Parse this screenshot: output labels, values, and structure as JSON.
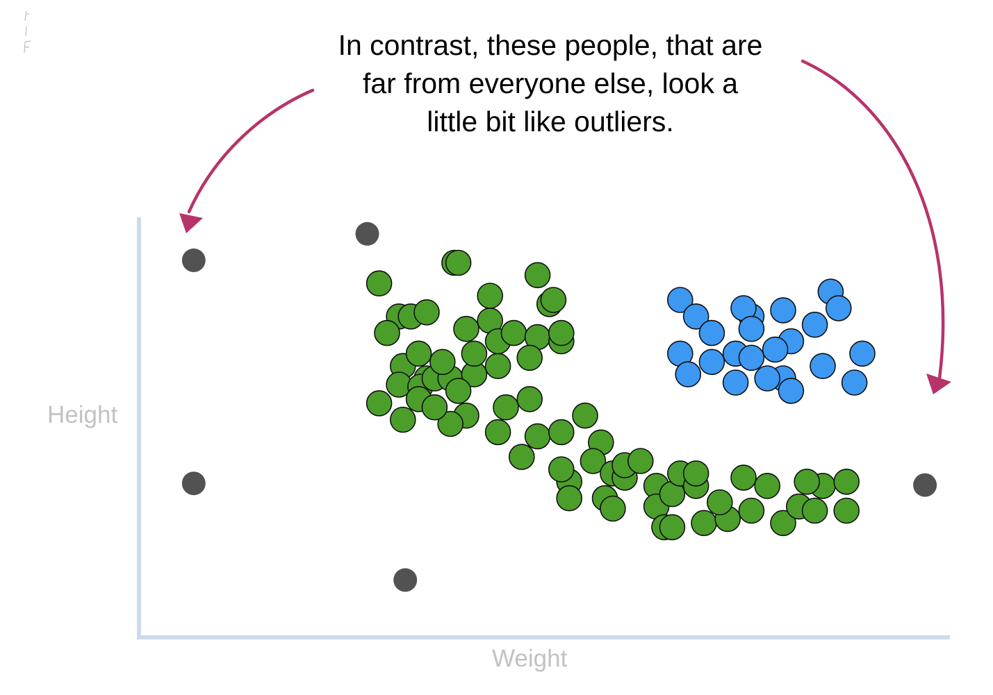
{
  "annotation": {
    "lines": [
      "In contrast, these people, that are",
      "far from everyone else, look a",
      "little bit like outliers."
    ],
    "arrow_color": "#b8336a"
  },
  "chart_data": {
    "type": "scatter",
    "title": "",
    "xlabel": "Weight",
    "ylabel": "Height",
    "xlim": [
      0,
      100
    ],
    "ylim": [
      0,
      100
    ],
    "axis_color": "#ccdaeb",
    "grid": false,
    "tick_labels": false,
    "series": [
      {
        "color": "#4c9e2b",
        "points": [
          [
            29,
            84
          ],
          [
            31.5,
            76
          ],
          [
            33,
            76
          ],
          [
            38.5,
            89
          ],
          [
            35,
            77
          ],
          [
            39,
            89
          ],
          [
            30,
            72
          ],
          [
            32,
            64
          ],
          [
            35,
            61
          ],
          [
            31.5,
            59.5
          ],
          [
            34.2,
            59
          ],
          [
            34,
            67
          ],
          [
            29,
            55
          ],
          [
            32,
            51
          ],
          [
            36,
            61
          ],
          [
            34,
            56
          ],
          [
            38,
            61
          ],
          [
            41,
            62
          ],
          [
            37,
            65
          ],
          [
            39,
            58
          ],
          [
            44,
            64
          ],
          [
            41,
            67
          ],
          [
            40,
            73
          ],
          [
            43,
            75
          ],
          [
            43,
            81
          ],
          [
            44,
            70
          ],
          [
            46,
            72
          ],
          [
            49,
            71
          ],
          [
            48,
            66
          ],
          [
            48,
            56
          ],
          [
            49,
            86
          ],
          [
            50.5,
            79
          ],
          [
            51,
            80
          ],
          [
            52,
            70
          ],
          [
            52,
            72
          ],
          [
            45,
            54
          ],
          [
            40,
            52
          ],
          [
            44,
            48
          ],
          [
            49,
            47
          ],
          [
            52,
            48
          ],
          [
            47,
            42
          ],
          [
            38,
            50
          ],
          [
            36,
            54
          ],
          [
            53,
            36
          ],
          [
            52,
            39
          ],
          [
            55,
            52
          ],
          [
            57,
            45.5
          ],
          [
            56,
            41
          ],
          [
            58.5,
            38
          ],
          [
            53,
            32
          ],
          [
            57.5,
            32
          ],
          [
            58.5,
            29.5
          ],
          [
            60,
            37
          ],
          [
            60,
            40
          ],
          [
            62,
            41
          ],
          [
            64,
            35
          ],
          [
            64,
            30
          ],
          [
            65,
            25
          ],
          [
            66,
            33
          ],
          [
            66,
            25
          ],
          [
            67,
            38
          ],
          [
            69,
            35
          ],
          [
            70,
            26
          ],
          [
            73,
            27
          ],
          [
            72,
            31
          ],
          [
            76,
            29
          ],
          [
            75,
            37
          ],
          [
            78,
            35
          ],
          [
            80,
            26
          ],
          [
            82,
            30
          ],
          [
            85,
            35
          ],
          [
            83,
            36
          ],
          [
            84,
            29
          ],
          [
            88,
            36
          ],
          [
            88,
            29
          ],
          [
            69,
            38
          ]
        ]
      },
      {
        "color": "#3d98f2",
        "points": [
          [
            67,
            80
          ],
          [
            69,
            76
          ],
          [
            71,
            72
          ],
          [
            76,
            76
          ],
          [
            75,
            78
          ],
          [
            76,
            73
          ],
          [
            80,
            77.5
          ],
          [
            84,
            74
          ],
          [
            86,
            82
          ],
          [
            81,
            70
          ],
          [
            87,
            78
          ],
          [
            90,
            67
          ],
          [
            71,
            65
          ],
          [
            74,
            67
          ],
          [
            76,
            66
          ],
          [
            79,
            68
          ],
          [
            80,
            61
          ],
          [
            74,
            60
          ],
          [
            67,
            67
          ],
          [
            68,
            62
          ],
          [
            81,
            58
          ],
          [
            85,
            64
          ],
          [
            89,
            60
          ],
          [
            78,
            61
          ]
        ]
      },
      {
        "color": "#525252",
        "points": [
          [
            5.6,
            89.6
          ],
          [
            27.5,
            96
          ],
          [
            5.6,
            35.6
          ],
          [
            32.3,
            12.2
          ],
          [
            97.9,
            35.2
          ]
        ]
      }
    ]
  }
}
